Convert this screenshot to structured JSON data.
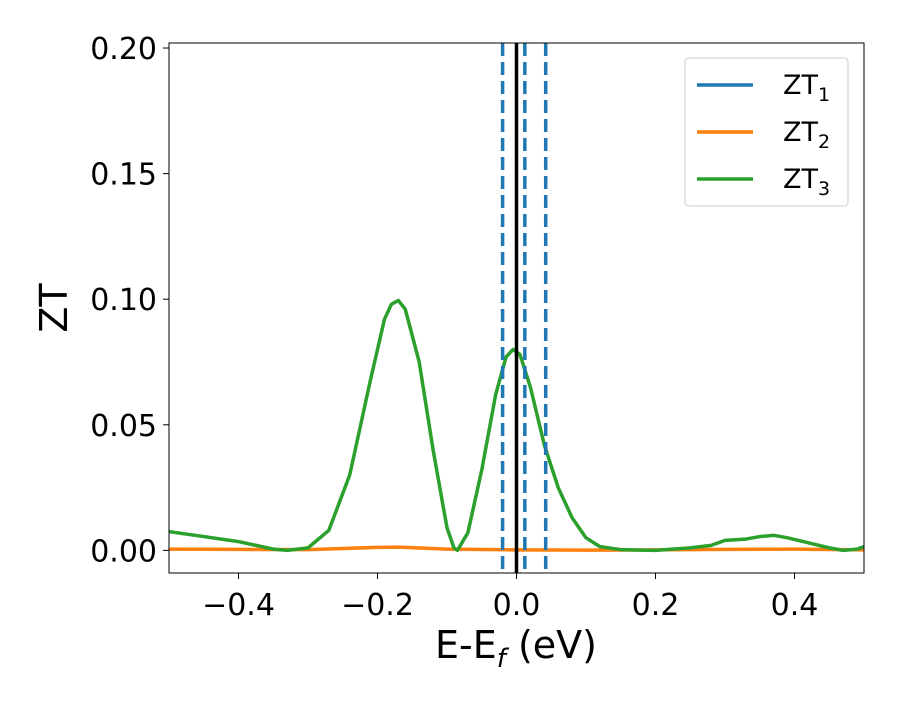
{
  "chart_data": {
    "type": "line",
    "xlabel": "E-E",
    "xlabel_sub": "f",
    "xlabel_unit": " (eV)",
    "ylabel": "ZT",
    "xlim": [
      -0.5,
      0.5
    ],
    "ylim": [
      -0.009,
      0.202
    ],
    "x_ticks": [
      -0.4,
      -0.2,
      0.0,
      0.2,
      0.4
    ],
    "x_tick_labels": [
      "−0.4",
      "−0.2",
      "0.0",
      "0.2",
      "0.4"
    ],
    "y_ticks": [
      0.0,
      0.05,
      0.1,
      0.15,
      0.2
    ],
    "y_tick_labels": [
      "0.00",
      "0.05",
      "0.10",
      "0.15",
      "0.20"
    ],
    "grid": false,
    "legend_position": "top-right",
    "series": [
      {
        "name": "ZT",
        "name_sub": "1",
        "color": "#1f77b4",
        "style": "solid",
        "x": [],
        "y": []
      },
      {
        "name": "ZT",
        "name_sub": "2",
        "color": "#ff7f0e",
        "style": "solid",
        "x": [
          -0.5,
          -0.4,
          -0.3,
          -0.2,
          -0.17,
          -0.1,
          0.0,
          0.1,
          0.2,
          0.3,
          0.4,
          0.5
        ],
        "y": [
          0.0005,
          0.0004,
          0.0003,
          0.0012,
          0.0013,
          0.0005,
          0.0002,
          0.0001,
          0.0002,
          0.0004,
          0.0005,
          0.0002
        ]
      },
      {
        "name": "ZT",
        "name_sub": "3",
        "color": "#2ca02c",
        "style": "solid",
        "x": [
          -0.5,
          -0.45,
          -0.4,
          -0.35,
          -0.33,
          -0.3,
          -0.27,
          -0.24,
          -0.21,
          -0.19,
          -0.18,
          -0.17,
          -0.16,
          -0.14,
          -0.12,
          -0.1,
          -0.09,
          -0.085,
          -0.07,
          -0.05,
          -0.03,
          -0.015,
          -0.005,
          0.005,
          0.02,
          0.04,
          0.06,
          0.08,
          0.1,
          0.12,
          0.15,
          0.2,
          0.25,
          0.28,
          0.3,
          0.33,
          0.35,
          0.37,
          0.39,
          0.42,
          0.45,
          0.47,
          0.49,
          0.5
        ],
        "y": [
          0.0075,
          0.0055,
          0.0035,
          0.0005,
          0.0,
          0.001,
          0.008,
          0.03,
          0.068,
          0.092,
          0.098,
          0.0995,
          0.096,
          0.075,
          0.04,
          0.009,
          0.001,
          0.0,
          0.007,
          0.032,
          0.062,
          0.077,
          0.08,
          0.078,
          0.065,
          0.042,
          0.025,
          0.013,
          0.005,
          0.0015,
          0.0003,
          0.0,
          0.001,
          0.002,
          0.004,
          0.0045,
          0.0055,
          0.006,
          0.005,
          0.003,
          0.001,
          0.0,
          0.0005,
          0.0015
        ]
      }
    ],
    "vertical_lines": [
      {
        "x": -0.02,
        "color": "#1f77b4",
        "style": "dashed"
      },
      {
        "x": 0.0,
        "color": "#000000",
        "style": "solid"
      },
      {
        "x": 0.012,
        "color": "#1f77b4",
        "style": "dashed"
      },
      {
        "x": 0.042,
        "color": "#1f77b4",
        "style": "dashed"
      }
    ]
  }
}
